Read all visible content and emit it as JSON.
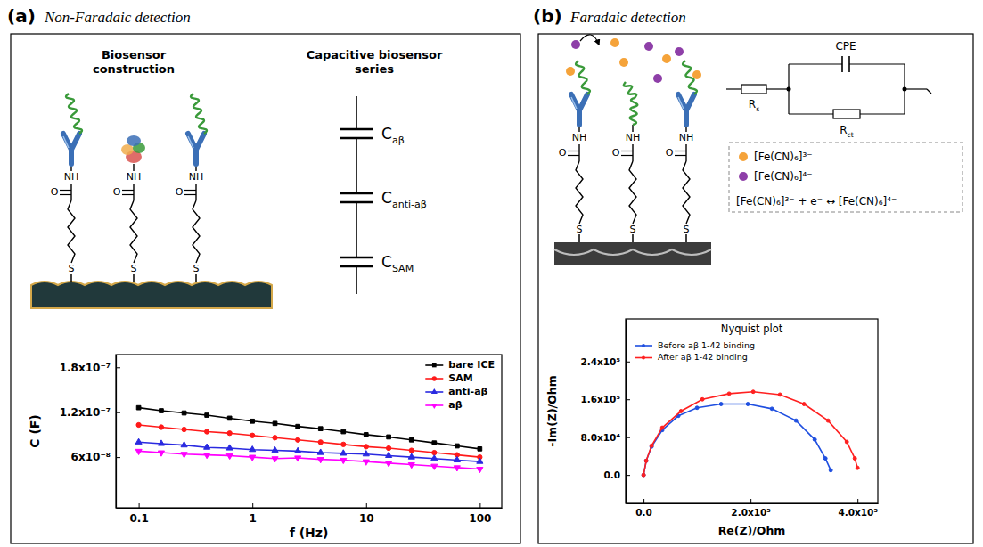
{
  "diagram": {
    "chain_labels": {
      "thiol": "S",
      "carbonyl": "O",
      "amide": "NH"
    },
    "panels": [
      {
        "letter": "(a)",
        "title": "Non-Faradaic detection",
        "construction_label": "Biosensor construction",
        "series_label": "Capacitive biosensor series",
        "capacitors": [
          {
            "symbol": "C",
            "subscript": "aβ"
          },
          {
            "symbol": "C",
            "subscript": "anti-aβ"
          },
          {
            "symbol": "C",
            "subscript": "SAM"
          }
        ]
      },
      {
        "letter": "(b)",
        "title": "Faradaic detection",
        "circuit": [
          {
            "symbol": "R",
            "subscript": "s"
          },
          {
            "symbol": "CPE"
          },
          {
            "symbol": "R",
            "subscript": "ct"
          }
        ],
        "species": [
          {
            "label": "[Fe(CN)₆]³⁻",
            "color": "#f5a33a"
          },
          {
            "label": "[Fe(CN)₆]⁴⁻",
            "color": "#8e3fa8"
          }
        ],
        "equation": "[Fe(CN)₆]³⁻ + e⁻ ↔ [Fe(CN)₆]⁴⁻"
      }
    ]
  },
  "chart_data": [
    {
      "type": "line",
      "x_label": "f (Hz)",
      "y_label": "C (F)",
      "log": "x",
      "grid": false,
      "legend": "upper right",
      "xlim": [
        0.063,
        156
      ],
      "xticks": [
        0.1,
        1,
        10,
        100
      ],
      "ylim": [
        -7.7e-09,
        1.97e-07
      ],
      "yticks": [
        {
          "value": 6e-08,
          "label": "6x10⁻⁸"
        },
        {
          "value": 1.2e-07,
          "label": "1.2x10⁻⁷"
        },
        {
          "value": 1.8e-07,
          "label": "1.8x10⁻⁷"
        }
      ],
      "x": [
        0.1,
        0.158,
        0.251,
        0.398,
        0.631,
        1,
        1.58,
        2.51,
        3.98,
        6.31,
        10,
        15.8,
        25.1,
        39.8,
        63.1,
        100
      ],
      "series": [
        {
          "name": "bare ICE",
          "color": "#000000",
          "marker": "square",
          "values": [
            1.26e-07,
            1.22e-07,
            1.19e-07,
            1.16e-07,
            1.12e-07,
            1.08e-07,
            1.05e-07,
            1.01e-07,
            9.8e-08,
            9.4e-08,
            9e-08,
            8.7e-08,
            8.3e-08,
            7.9e-08,
            7.5e-08,
            7.1e-08
          ]
        },
        {
          "name": "SAM",
          "color": "#ff1a1a",
          "marker": "circle",
          "values": [
            1.03e-07,
            1e-07,
            9.7e-08,
            9.4e-08,
            9.2e-08,
            8.9e-08,
            8.6e-08,
            8.3e-08,
            8e-08,
            7.7e-08,
            7.4e-08,
            7.2e-08,
            6.9e-08,
            6.6e-08,
            6.3e-08,
            6e-08
          ]
        },
        {
          "name": "anti-aβ",
          "color": "#2a2ae0",
          "marker": "triangle",
          "values": [
            8e-08,
            7.8e-08,
            7.6e-08,
            7.3e-08,
            7.2e-08,
            7e-08,
            6.9e-08,
            6.8e-08,
            6.6e-08,
            6.5e-08,
            6.4e-08,
            6.2e-08,
            6e-08,
            5.8e-08,
            5.6e-08,
            5.4e-08
          ]
        },
        {
          "name": "aβ",
          "color": "#ff00ff",
          "marker": "triangle-down",
          "values": [
            6.8e-08,
            6.6e-08,
            6.4e-08,
            6.3e-08,
            6.2e-08,
            6e-08,
            5.8e-08,
            5.9e-08,
            5.7e-08,
            5.6e-08,
            5.4e-08,
            5.2e-08,
            5e-08,
            4.8e-08,
            4.6e-08,
            4.4e-08
          ]
        }
      ]
    },
    {
      "type": "line",
      "title": "Nyquist plot",
      "x_label": "Re(Z)/Ohm",
      "y_label": "-Im(Z)/Ohm",
      "grid": false,
      "legend": "upper left",
      "xlim": [
        -33500,
        438000
      ],
      "xticks": [
        {
          "value": 0,
          "label": "0.0"
        },
        {
          "value": 200000,
          "label": "2.0x10⁵"
        },
        {
          "value": 400000,
          "label": "4.0x10⁵"
        }
      ],
      "ylim": [
        -60000,
        330000
      ],
      "yticks": [
        {
          "value": 0,
          "label": "0.0"
        },
        {
          "value": 80000,
          "label": "8.0x10⁴"
        },
        {
          "value": 160000,
          "label": "1.6x10⁵"
        },
        {
          "value": 240000,
          "label": "2.4x10⁵"
        }
      ],
      "series": [
        {
          "name": "Before aβ 1-42 binding",
          "color": "#1f4fe0",
          "marker": "circle",
          "x": [
            0,
            5000,
            15000,
            35000,
            65000,
            100000,
            145000,
            195000,
            240000,
            285000,
            320000,
            340000,
            350000
          ],
          "values": [
            0,
            30000,
            60000,
            95000,
            125000,
            142000,
            150000,
            150000,
            140000,
            115000,
            75000,
            35000,
            10000
          ]
        },
        {
          "name": "After aβ 1-42 binding",
          "color": "#ff2020",
          "marker": "circle",
          "x": [
            0,
            5000,
            15000,
            35000,
            70000,
            110000,
            160000,
            205000,
            255000,
            300000,
            345000,
            380000,
            395000,
            400000
          ],
          "values": [
            0,
            30000,
            62000,
            100000,
            135000,
            160000,
            172000,
            176000,
            170000,
            150000,
            115000,
            70000,
            35000,
            15000
          ]
        }
      ]
    }
  ]
}
